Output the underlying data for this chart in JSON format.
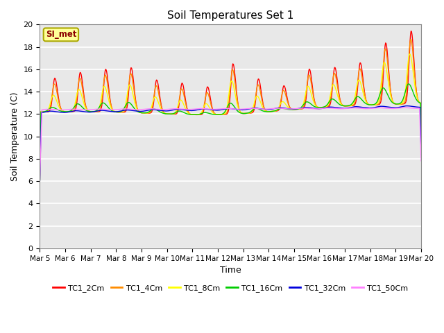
{
  "title": "Soil Temperatures Set 1",
  "xlabel": "Time",
  "ylabel": "Soil Temperature (C)",
  "ylim": [
    0,
    20
  ],
  "xtick_labels": [
    "Mar 5",
    "Mar 6",
    "Mar 7",
    "Mar 8",
    "Mar 9",
    "Mar 10",
    "Mar 11",
    "Mar 12",
    "Mar 13",
    "Mar 14",
    "Mar 15",
    "Mar 16",
    "Mar 17",
    "Mar 18",
    "Mar 19",
    "Mar 20"
  ],
  "ytick_labels": [
    "0",
    "2",
    "4",
    "6",
    "8",
    "10",
    "12",
    "14",
    "16",
    "18",
    "20"
  ],
  "annotation": "SI_met",
  "annotation_color": "#8b0000",
  "annotation_bg": "#ffff99",
  "annotation_border": "#aaa800",
  "series_colors": [
    "#ff0000",
    "#ff8c00",
    "#ffff00",
    "#00cc00",
    "#0000dd",
    "#ff80ff"
  ],
  "series_labels": [
    "TC1_2Cm",
    "TC1_4Cm",
    "TC1_8Cm",
    "TC1_16Cm",
    "TC1_32Cm",
    "TC1_50Cm"
  ],
  "bg_color": "#e8e8e8",
  "fig_bg_color": "#ffffff",
  "grid_color": "#ffffff"
}
